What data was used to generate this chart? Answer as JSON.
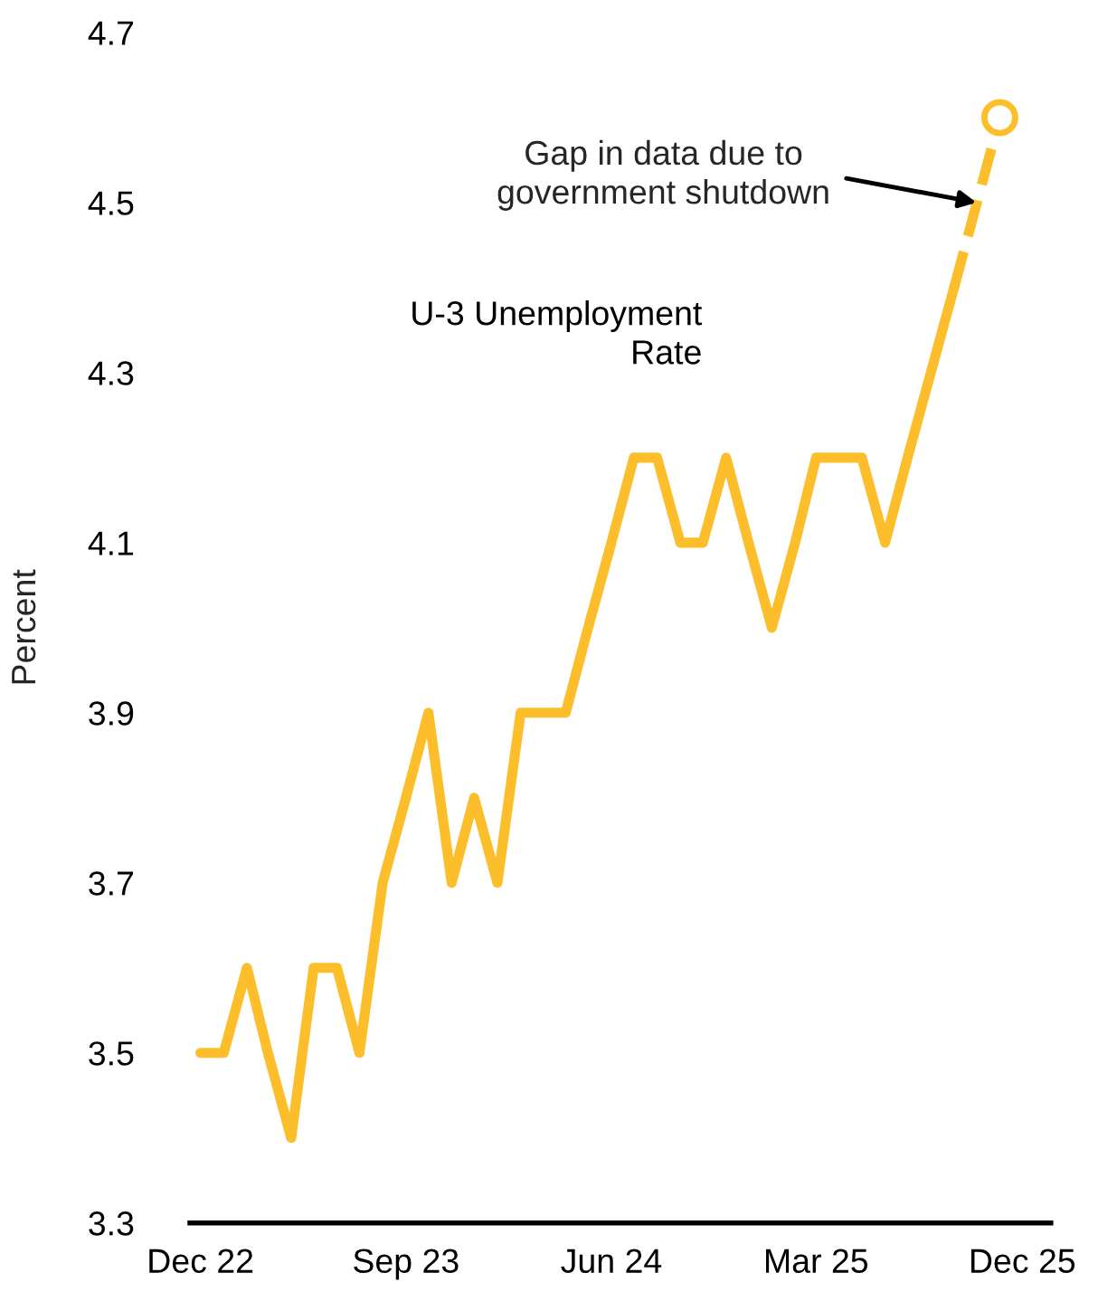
{
  "chart_data": {
    "type": "line",
    "ylabel": "Percent",
    "x": [
      "2022-12",
      "2023-01",
      "2023-02",
      "2023-03",
      "2023-04",
      "2023-05",
      "2023-06",
      "2023-07",
      "2023-08",
      "2023-09",
      "2023-10",
      "2023-11",
      "2023-12",
      "2024-01",
      "2024-02",
      "2024-03",
      "2024-04",
      "2024-05",
      "2024-06",
      "2024-07",
      "2024-08",
      "2024-09",
      "2024-10",
      "2024-11",
      "2024-12",
      "2025-01",
      "2025-02",
      "2025-03",
      "2025-04",
      "2025-05",
      "2025-06",
      "2025-07",
      "2025-08",
      "2025-09"
    ],
    "series": [
      {
        "name": "U-3 Unemployment\nRate",
        "color": "#fcbf2b",
        "line_style": "solid",
        "marker": "none",
        "values": [
          3.5,
          3.5,
          3.6,
          3.5,
          3.4,
          3.6,
          3.6,
          3.5,
          3.7,
          3.8,
          3.9,
          3.7,
          3.8,
          3.7,
          3.9,
          3.9,
          3.9,
          4.0,
          4.1,
          4.2,
          4.2,
          4.1,
          4.1,
          4.2,
          4.1,
          4.0,
          4.1,
          4.2,
          4.2,
          4.2,
          4.1,
          4.2,
          4.3,
          4.4
        ]
      },
      {
        "color": "#fcbf2b",
        "line_style": "dashed",
        "marker": "none",
        "x": [
          "2025-09",
          "2025-11"
        ],
        "values": [
          4.4,
          4.6
        ]
      },
      {
        "type": "scatter",
        "color": "#fcbf2b",
        "marker": "circle",
        "x": [
          "2025-11"
        ],
        "values": [
          4.6
        ]
      }
    ],
    "annotations": [
      {
        "text": "Gap in data due to\ngovernment shutdown",
        "x": "2025-10",
        "y": 4.5
      }
    ],
    "xlim": [
      "2022-11-17",
      "2026-01-08"
    ],
    "xticks": [
      {
        "value": "2022-12",
        "label": "Dec 22"
      },
      {
        "value": "2023-09",
        "label": "Sep 23"
      },
      {
        "value": "2024-06",
        "label": "Jun 24"
      },
      {
        "value": "2025-03",
        "label": "Mar 25"
      },
      {
        "value": "2025-12",
        "label": "Dec 25"
      }
    ],
    "ylim": [
      3.3,
      4.7
    ],
    "yticks": [
      3.3,
      3.5,
      3.7,
      3.9,
      4.1,
      4.3,
      4.5,
      4.7
    ],
    "grid": false,
    "legend": false
  }
}
